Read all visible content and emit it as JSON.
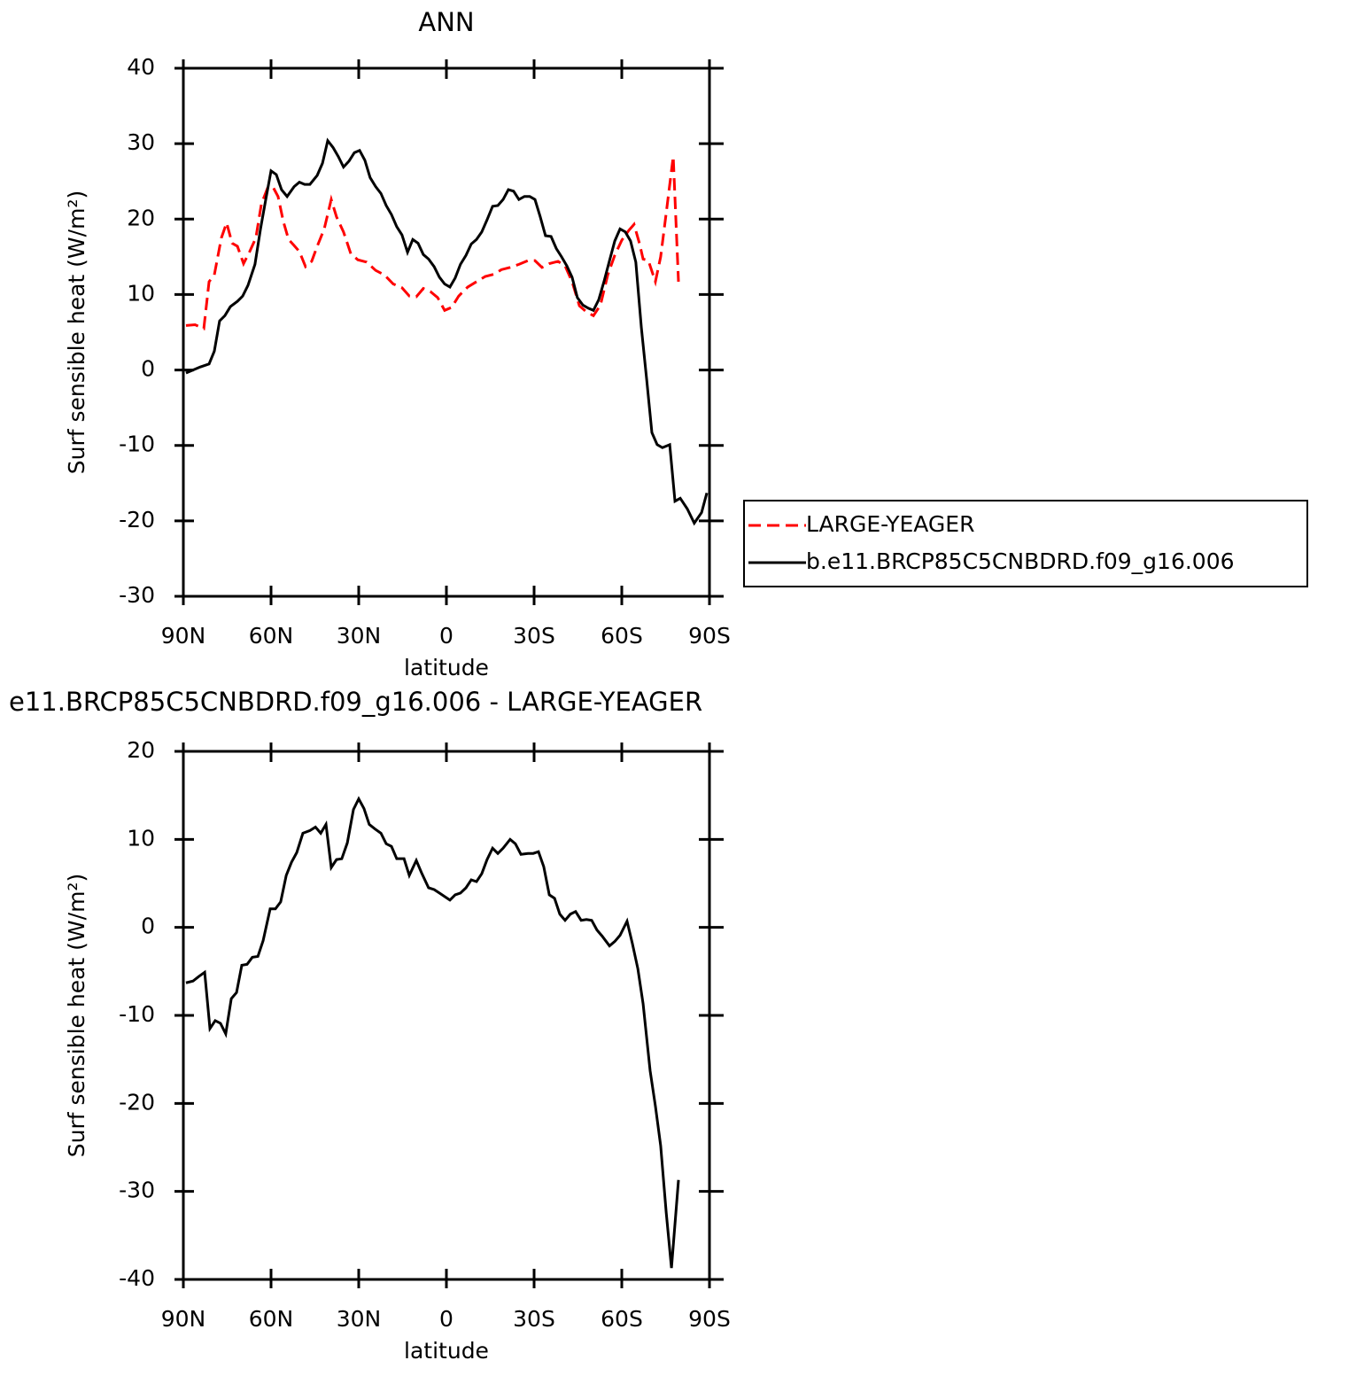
{
  "chart_data": [
    {
      "type": "line",
      "title": "ANN",
      "xlabel": "latitude",
      "ylabel": "Surf sensible heat (W/m²)",
      "xlim": [
        90,
        -90
      ],
      "xticks": [
        {
          "value": 90,
          "label": "90N"
        },
        {
          "value": 60,
          "label": "60N"
        },
        {
          "value": 30,
          "label": "30N"
        },
        0,
        {
          "value": -30,
          "label": "30S"
        },
        {
          "value": -60,
          "label": "60S"
        },
        {
          "value": -90,
          "label": "90S"
        }
      ],
      "ylim": [
        -30,
        40
      ],
      "yticks": [
        -30,
        -20,
        -10,
        0,
        10,
        20,
        30,
        40
      ],
      "legend": "outside-right",
      "series": [
        {
          "name": "LARGE-YEAGER",
          "color": "#ff0000",
          "dashed": true,
          "x": [
            89.1,
            86,
            83,
            81.2,
            79.4,
            77,
            75.2,
            73.3,
            71.5,
            69.4,
            67.3,
            65.2,
            63.3,
            61.2,
            59.4,
            57.6,
            55.8,
            54,
            52.1,
            50.3,
            48.2,
            46.1,
            44.2,
            41.8,
            39.4,
            37.6,
            35.2,
            32.7,
            30.3,
            27.3,
            24.2,
            21.2,
            18.2,
            15.2,
            12.7,
            10.3,
            7.9,
            5.5,
            3.0,
            0.6,
            -1.8,
            -4.2,
            -7.3,
            -10.3,
            -13.3,
            -16.4,
            -18.8,
            -21.8,
            -24.8,
            -27.9,
            -30.3,
            -32.7,
            -35.2,
            -38.2,
            -40.6,
            -43.0,
            -45.5,
            -47.9,
            -50.3,
            -52.7,
            -55.2,
            -57.6,
            -60,
            -62.4,
            -64.2,
            -66.1,
            -67.3,
            -69.1,
            -71.5,
            -73.3,
            -75.2,
            -77.6,
            -79.4
          ],
          "values": [
            5.9,
            6.0,
            5.5,
            11.7,
            12.6,
            17.5,
            19.5,
            16.8,
            16.4,
            14.1,
            15.7,
            17.5,
            22.0,
            24.1,
            24.3,
            23.0,
            19.7,
            17.3,
            16.5,
            15.7,
            13.7,
            14.4,
            16.4,
            18.7,
            22.6,
            20.3,
            18.3,
            15.4,
            14.6,
            14.3,
            13.2,
            12.6,
            11.4,
            10.9,
            9.8,
            9.7,
            10.8,
            10.4,
            9.6,
            7.9,
            8.3,
            9.8,
            11.0,
            11.7,
            12.4,
            12.7,
            13.3,
            13.6,
            14.0,
            14.5,
            14.5,
            13.6,
            14.1,
            14.4,
            13.8,
            11.7,
            8.5,
            7.7,
            7.2,
            8.6,
            12.6,
            15.2,
            17.2,
            18.5,
            19.3,
            16.7,
            14.7,
            14.5,
            11.7,
            15.0,
            20.8,
            28.3,
            11.7
          ]
        },
        {
          "name": "b.e11.BRCP85C5CNBDRD.f09_g16.006",
          "color": "#000000",
          "dashed": false,
          "x": [
            89.1,
            86.7,
            84.2,
            81.2,
            79.4,
            77.6,
            75.8,
            73.9,
            71.5,
            69.7,
            67.9,
            65.5,
            63.6,
            61.8,
            60,
            58.2,
            56.4,
            54.5,
            52.1,
            50.3,
            48.5,
            46.7,
            44.2,
            42.4,
            40.6,
            38.8,
            37,
            35.2,
            33.3,
            31.5,
            29.7,
            27.9,
            26.1,
            24.2,
            22.4,
            20.6,
            18.8,
            17,
            15.2,
            13.3,
            11.5,
            9.7,
            7.9,
            6.1,
            4.2,
            2.4,
            0.6,
            -1.2,
            -3.0,
            -4.8,
            -6.7,
            -8.5,
            -10.3,
            -12.1,
            -13.9,
            -15.8,
            -17.6,
            -19.4,
            -21.2,
            -23.0,
            -24.8,
            -26.7,
            -28.5,
            -30.3,
            -32.1,
            -33.9,
            -35.8,
            -37.6,
            -39.4,
            -41.2,
            -43.0,
            -44.8,
            -46.7,
            -48.5,
            -50.3,
            -52.1,
            -53.9,
            -55.8,
            -57.6,
            -59.4,
            -61.2,
            -63,
            -64.8,
            -66.7,
            -68.5,
            -70.3,
            -72.1,
            -73.9,
            -76.4,
            -78.2,
            -80,
            -82.4,
            -84.8,
            -87.3,
            -89.1
          ],
          "values": [
            -0.4,
            0.0,
            0.4,
            0.8,
            2.5,
            6.5,
            7.2,
            8.4,
            9.1,
            9.8,
            11.2,
            14.0,
            18.7,
            22.6,
            26.4,
            25.9,
            23.9,
            23.0,
            24.3,
            24.9,
            24.6,
            24.6,
            25.8,
            27.4,
            30.4,
            29.5,
            28.3,
            26.9,
            27.7,
            28.8,
            29.1,
            27.8,
            25.5,
            24.3,
            23.4,
            21.8,
            20.6,
            19.0,
            17.9,
            15.6,
            17.3,
            16.8,
            15.3,
            14.7,
            13.7,
            12.3,
            11.4,
            11.0,
            12.2,
            14.0,
            15.2,
            16.7,
            17.3,
            18.3,
            19.9,
            21.7,
            21.8,
            22.6,
            23.9,
            23.7,
            22.6,
            23.0,
            23.0,
            22.6,
            20.3,
            17.8,
            17.7,
            16.1,
            15.0,
            13.8,
            12.3,
            9.6,
            8.6,
            8.2,
            7.9,
            9.3,
            11.7,
            14.5,
            17.1,
            18.7,
            18.3,
            17.1,
            14.3,
            5.6,
            -1.2,
            -8.3,
            -9.9,
            -10.3,
            -9.9,
            -17.4,
            -17.0,
            -18.4,
            -20.3,
            -18.9,
            -16.3
          ]
        }
      ]
    },
    {
      "type": "line",
      "title": "e11.BRCP85C5CNBDRD.f09_g16.006 - LARGE-YEAGER",
      "xlabel": "latitude",
      "ylabel": "Surf sensible heat (W/m²)",
      "xlim": [
        90,
        -90
      ],
      "xticks": [
        {
          "value": 90,
          "label": "90N"
        },
        {
          "value": 60,
          "label": "60N"
        },
        {
          "value": 30,
          "label": "30N"
        },
        0,
        {
          "value": -30,
          "label": "30S"
        },
        {
          "value": -60,
          "label": "60S"
        },
        {
          "value": -90,
          "label": "90S"
        }
      ],
      "ylim": [
        -40,
        20
      ],
      "yticks": [
        -40,
        -30,
        -20,
        -10,
        0,
        10,
        20
      ],
      "series": [
        {
          "color": "#000000",
          "dashed": false,
          "x": [
            89.1,
            86.7,
            84.8,
            82.7,
            80.9,
            79.1,
            77.3,
            75.5,
            73.6,
            71.8,
            70,
            68.2,
            66.4,
            64.5,
            62.7,
            60.3,
            58.5,
            56.7,
            54.8,
            53,
            51.2,
            49.1,
            46.7,
            44.8,
            43,
            41.2,
            39.4,
            37.6,
            35.8,
            33.9,
            31.8,
            30,
            28.2,
            26.4,
            24.5,
            22.4,
            20.6,
            18.8,
            17,
            14.5,
            12.7,
            10.3,
            8.5,
            6.1,
            4.2,
            2.4,
            0.6,
            -1.2,
            -3.0,
            -4.8,
            -6.7,
            -8.5,
            -10.3,
            -12.1,
            -13.9,
            -15.8,
            -17.6,
            -19.4,
            -21.8,
            -23.6,
            -25.5,
            -27.9,
            -29.7,
            -31.5,
            -33.3,
            -35.2,
            -37,
            -38.8,
            -40.6,
            -42.4,
            -44.2,
            -46.1,
            -47.9,
            -49.7,
            -51.5,
            -53.3,
            -55.8,
            -57.6,
            -59.4,
            -61.8,
            -63.6,
            -65.5,
            -67.3,
            -69.7,
            -71.5,
            -73.3,
            -75.2,
            -77,
            -79.4
          ],
          "values": [
            -6.3,
            -6.1,
            -5.6,
            -5.1,
            -11.5,
            -10.6,
            -10.9,
            -12.1,
            -8.1,
            -7.4,
            -4.3,
            -4.2,
            -3.4,
            -3.3,
            -1.5,
            2.1,
            2.1,
            2.9,
            5.9,
            7.4,
            8.5,
            10.7,
            11.0,
            11.4,
            10.7,
            11.7,
            6.8,
            7.7,
            7.8,
            9.6,
            13.4,
            14.6,
            13.5,
            11.7,
            11.2,
            10.7,
            9.5,
            9.2,
            7.8,
            7.8,
            5.9,
            7.6,
            6.2,
            4.5,
            4.3,
            3.9,
            3.5,
            3.1,
            3.7,
            3.9,
            4.5,
            5.4,
            5.2,
            6.1,
            7.7,
            9.0,
            8.4,
            9.0,
            10.0,
            9.5,
            8.3,
            8.4,
            8.4,
            8.6,
            6.9,
            3.7,
            3.3,
            1.5,
            0.8,
            1.5,
            1.8,
            0.8,
            0.9,
            0.8,
            -0.3,
            -1.0,
            -2.1,
            -1.6,
            -0.9,
            0.7,
            -1.8,
            -4.7,
            -8.7,
            -16.3,
            -20.3,
            -24.8,
            -32.4,
            -38.7,
            -28.7
          ]
        }
      ]
    }
  ]
}
